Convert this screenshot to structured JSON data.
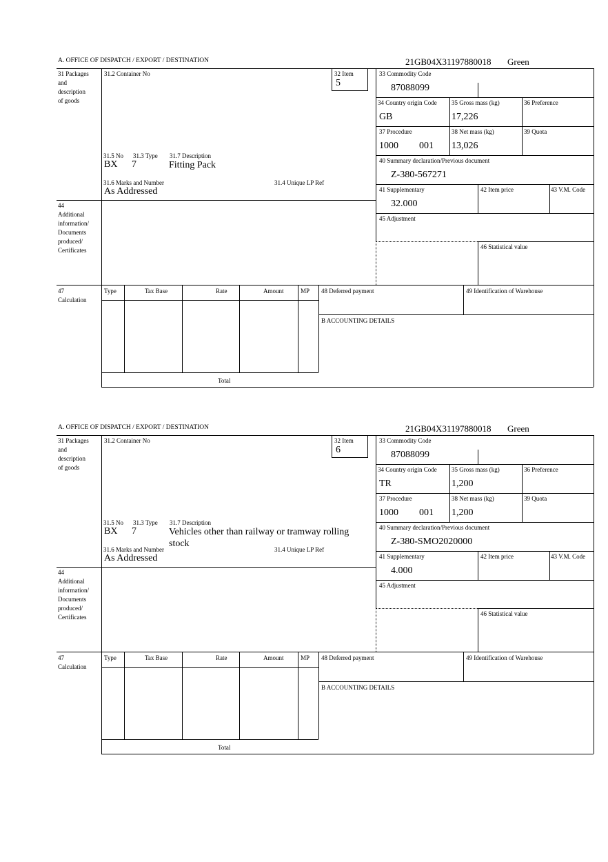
{
  "header": {
    "office_label": "A.  OFFICE OF DISPATCH / EXPORT / DESTINATION",
    "reference": "21GB04X31197880018",
    "route": "Green"
  },
  "labels": {
    "box31": [
      "31 Packages",
      "and",
      "description",
      "of goods"
    ],
    "container_no": "31.2 Container No",
    "item": "32 Item",
    "no": "31.5 No",
    "type": "31.3 Type",
    "description": "31.7 Description",
    "marks": "31.6 Marks and Number",
    "unique_lp_ref": "31.4 Unique LP Ref",
    "commodity_code": "33 Commodity Code",
    "country_origin": "34 Country origin Code",
    "gross_mass": "35 Gross mass (kg)",
    "preference": "36 Preference",
    "procedure": "37 Procedure",
    "net_mass": "38 Net mass (kg)",
    "quota": "39 Quota",
    "summary_declaration": "40 Summary declaration/Previous document",
    "supplementary": "41 Supplementary",
    "item_price": "42 Item price",
    "vm_code": "43 V.M. Code",
    "adjustment": "45 Adjustment",
    "statistical_value": "46 Statistical value",
    "box44": [
      "44",
      "Additional",
      "information/",
      "Documents",
      "produced/",
      "Certificates"
    ],
    "box47": [
      "47",
      "Calculation"
    ],
    "calc_columns": [
      "Type",
      "Tax Base",
      "Rate",
      "Amount",
      "MP"
    ],
    "deferred_payment": "48 Deferred payment",
    "warehouse": "49 Identification of Warehouse",
    "accounting": "B ACCOUNTING DETAILS",
    "total": "Total"
  },
  "items": [
    {
      "item_no": "5",
      "package_kind": "BX",
      "package_count": "7",
      "description": "Fitting Pack",
      "marks": "As Addressed",
      "commodity_code": "87088099",
      "country_origin": "GB",
      "gross_mass": "17,226",
      "procedure": "1000",
      "procedure_additional": "001",
      "net_mass": "13,026",
      "previous_document": "Z-380-567271",
      "supplementary": "32.000"
    },
    {
      "item_no": "6",
      "package_kind": "BX",
      "package_count": "7",
      "description": "Vehicles other than railway or tramway rolling stock",
      "marks": "As Addressed",
      "commodity_code": "87088099",
      "country_origin": "TR",
      "gross_mass": "1,200",
      "procedure": "1000",
      "procedure_additional": "001",
      "net_mass": "1,200",
      "previous_document": "Z-380-SMO2020000",
      "supplementary": "4.000"
    }
  ]
}
